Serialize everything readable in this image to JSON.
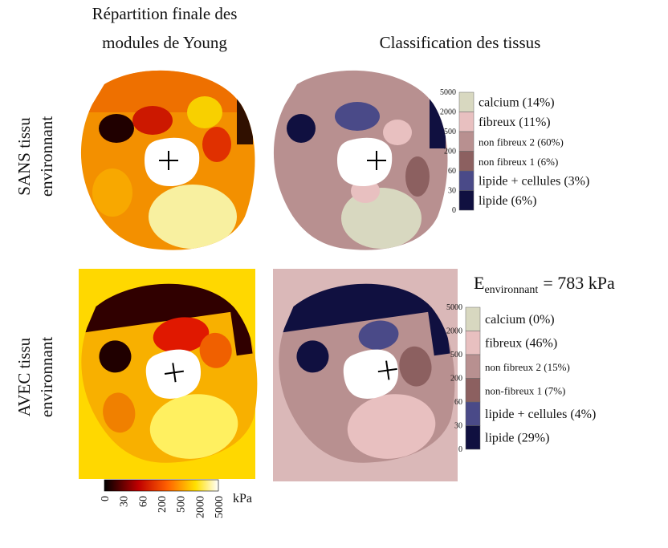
{
  "columns": {
    "left": {
      "title_lines": [
        "Répartition finale des",
        "modules de Young"
      ]
    },
    "right": {
      "title": "Classification des tissus"
    }
  },
  "rows": [
    {
      "label_lines": [
        "SANS tissu",
        "environnant"
      ]
    },
    {
      "label_lines": [
        "AVEC tissu",
        "environnant"
      ]
    }
  ],
  "legends": [
    {
      "scale_ticks": [
        "5000",
        "2000",
        "500",
        "200",
        "60",
        "30",
        "0"
      ],
      "entries": [
        "calcium (14%)",
        "fibreux (11%)",
        "non fibreux 2 (60%)",
        "non fibreux 1 (6%)",
        "lipide + cellules (3%)",
        "lipide (6%)"
      ]
    },
    {
      "scale_ticks": [
        "5000",
        "2000",
        "500",
        "200",
        "60",
        "30",
        "0"
      ],
      "entries": [
        "calcium (0%)",
        "fibreux (46%)",
        "non fibreux 2 (15%)",
        "non-fibreux 1 (7%)",
        "lipide + cellules (4%)",
        "lipide (29%)"
      ]
    }
  ],
  "environment": {
    "symbol": "E",
    "subscript": "environnant",
    "value": "= 783 kPa"
  },
  "colorbar": {
    "ticks": [
      "0",
      "30",
      "60",
      "200",
      "500",
      "2000",
      "5000"
    ],
    "unit": "kPa"
  }
}
